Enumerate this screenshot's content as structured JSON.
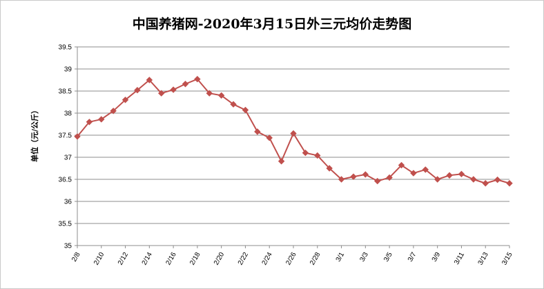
{
  "chart_data": {
    "type": "line",
    "title": "中国养猪网-2020年3月15日外三元均价走势图",
    "ylabel": "单位（元/公斤）",
    "xlabel": "",
    "ylim": [
      35,
      39.5
    ],
    "ytick_labels": [
      "35",
      "35.5",
      "36",
      "36.5",
      "37",
      "37.5",
      "38",
      "38.5",
      "39",
      "39.5"
    ],
    "x": [
      "2/8",
      "2/9",
      "2/10",
      "2/11",
      "2/12",
      "2/13",
      "2/14",
      "2/15",
      "2/16",
      "2/17",
      "2/18",
      "2/19",
      "2/20",
      "2/21",
      "2/22",
      "2/23",
      "2/24",
      "2/25",
      "2/26",
      "2/27",
      "2/28",
      "2/29",
      "3/1",
      "3/2",
      "3/3",
      "3/4",
      "3/5",
      "3/6",
      "3/7",
      "3/8",
      "3/9",
      "3/10",
      "3/11",
      "3/12",
      "3/13",
      "3/14",
      "3/15"
    ],
    "xtick_labels": [
      "2/8",
      "2/10",
      "2/12",
      "2/14",
      "2/16",
      "2/18",
      "2/20",
      "2/22",
      "2/24",
      "2/26",
      "2/28",
      "3/1",
      "3/3",
      "3/5",
      "3/7",
      "3/9",
      "3/11",
      "3/13",
      "3/15"
    ],
    "series": [
      {
        "name": "",
        "color": "#c0504d",
        "marker": "diamond",
        "values": [
          37.47,
          37.8,
          37.86,
          38.05,
          38.3,
          38.52,
          38.75,
          38.45,
          38.53,
          38.66,
          38.77,
          38.45,
          38.4,
          38.2,
          38.07,
          37.58,
          37.44,
          36.91,
          37.54,
          37.1,
          37.04,
          36.75,
          36.5,
          36.56,
          36.61,
          36.46,
          36.54,
          36.82,
          36.64,
          36.72,
          36.5,
          36.59,
          36.62,
          36.5,
          36.41,
          36.49,
          36.41
        ]
      }
    ],
    "grid": true,
    "legend": "none"
  }
}
